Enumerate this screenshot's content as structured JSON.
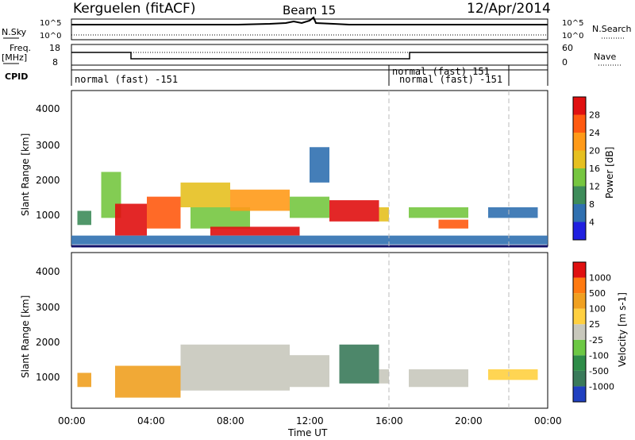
{
  "header": {
    "station": "Kerguelen (fitACF)",
    "beam": "Beam 15",
    "date": "12/Apr/2014"
  },
  "nsky_panel": {
    "left_label": "N.Sky",
    "right_label": "N.Search",
    "left_ticks": [
      "10^5",
      "10^0"
    ],
    "right_ticks": [
      "10^5",
      "10^0"
    ]
  },
  "freq_panel": {
    "left_label_line1": "Freq.",
    "left_label_line2": "[MHz]",
    "right_label": "Nave",
    "left_ticks": [
      "18",
      "8"
    ],
    "right_ticks": [
      "60",
      "0"
    ]
  },
  "cpid_panel": {
    "label": "CPID",
    "segments": [
      {
        "text": "normal (fast) -151",
        "start_hour": 0
      },
      {
        "text": "normal (fast) 151",
        "start_hour": 16
      },
      {
        "text": "normal (fast) -151",
        "start_hour": 22
      }
    ]
  },
  "chart_data": [
    {
      "type": "heatmap",
      "name": "power",
      "ylabel": "Slant Range [km]",
      "y_ticks": [
        "1000",
        "2000",
        "3000",
        "4000"
      ],
      "ylim": [
        200,
        4600
      ],
      "xlim": [
        0,
        24
      ],
      "colorbar_label": "Power [dB]",
      "colorbar_ticks": [
        "4",
        "8",
        "12",
        "16",
        "20",
        "24",
        "28"
      ],
      "colors": [
        "#2020e0",
        "#3070b0",
        "#3e8c5a",
        "#76c640",
        "#e6c020",
        "#ff9a18",
        "#ff5a10",
        "#e01010"
      ],
      "regions": [
        {
          "x0": 0.3,
          "x1": 1.0,
          "y0": 800,
          "y1": 1200,
          "level": 2
        },
        {
          "x0": 1.5,
          "x1": 2.5,
          "y0": 1000,
          "y1": 2300,
          "level": 3
        },
        {
          "x0": 2.2,
          "x1": 3.8,
          "y0": 500,
          "y1": 1400,
          "level": 7
        },
        {
          "x0": 3.8,
          "x1": 5.5,
          "y0": 700,
          "y1": 1600,
          "level": 6
        },
        {
          "x0": 5.5,
          "x1": 8.0,
          "y0": 1300,
          "y1": 2000,
          "level": 4
        },
        {
          "x0": 6.0,
          "x1": 9.0,
          "y0": 700,
          "y1": 1300,
          "level": 3
        },
        {
          "x0": 7.0,
          "x1": 11.5,
          "y0": 500,
          "y1": 750,
          "level": 7
        },
        {
          "x0": 8.0,
          "x1": 11.0,
          "y0": 1200,
          "y1": 1800,
          "level": 5
        },
        {
          "x0": 11.0,
          "x1": 13.0,
          "y0": 1000,
          "y1": 1600,
          "level": 3
        },
        {
          "x0": 13.0,
          "x1": 15.5,
          "y0": 900,
          "y1": 1500,
          "level": 7
        },
        {
          "x0": 12.0,
          "x1": 13.0,
          "y0": 2000,
          "y1": 3000,
          "level": 1
        },
        {
          "x0": 15.5,
          "x1": 16.0,
          "y0": 900,
          "y1": 1300,
          "level": 4
        },
        {
          "x0": 17.0,
          "x1": 20.0,
          "y0": 1000,
          "y1": 1300,
          "level": 3
        },
        {
          "x0": 18.5,
          "x1": 20.0,
          "y0": 700,
          "y1": 950,
          "level": 6
        },
        {
          "x0": 21.0,
          "x1": 23.5,
          "y0": 1000,
          "y1": 1300,
          "level": 1
        },
        {
          "x0": 0.0,
          "x1": 24.0,
          "y0": 250,
          "y1": 500,
          "level": 1
        }
      ]
    },
    {
      "type": "heatmap",
      "name": "velocity",
      "ylabel": "Slant Range [km]",
      "y_ticks": [
        "1000",
        "2000",
        "3000",
        "4000"
      ],
      "ylim": [
        200,
        4600
      ],
      "xlim": [
        0,
        24
      ],
      "x_ticks": [
        "00:00",
        "04:00",
        "08:00",
        "12:00",
        "16:00",
        "20:00",
        "00:00"
      ],
      "xlabel": "Time UT",
      "colorbar_label": "Velocity [m s-1]",
      "colorbar_ticks": [
        "1000",
        "500",
        "100",
        "25",
        "-25",
        "-100",
        "-500",
        "-1000"
      ],
      "colors": [
        "#2040c0",
        "#3a7a5a",
        "#2e8c48",
        "#6cc844",
        "#c8c8bc",
        "#ffd040",
        "#f0a020",
        "#ff7a10",
        "#e01010"
      ],
      "regions": [
        {
          "x0": 0.3,
          "x1": 1.0,
          "y0": 800,
          "y1": 1200,
          "level": 6
        },
        {
          "x0": 2.2,
          "x1": 5.5,
          "y0": 500,
          "y1": 1400,
          "level": 6
        },
        {
          "x0": 5.5,
          "x1": 11.0,
          "y0": 700,
          "y1": 2000,
          "level": 4
        },
        {
          "x0": 11.0,
          "x1": 13.0,
          "y0": 800,
          "y1": 1700,
          "level": 4
        },
        {
          "x0": 13.5,
          "x1": 15.5,
          "y0": 900,
          "y1": 2000,
          "level": 1
        },
        {
          "x0": 15.5,
          "x1": 16.0,
          "y0": 900,
          "y1": 1300,
          "level": 4
        },
        {
          "x0": 17.0,
          "x1": 20.0,
          "y0": 800,
          "y1": 1300,
          "level": 4
        },
        {
          "x0": 21.0,
          "x1": 23.5,
          "y0": 1000,
          "y1": 1300,
          "level": 5
        }
      ]
    }
  ]
}
